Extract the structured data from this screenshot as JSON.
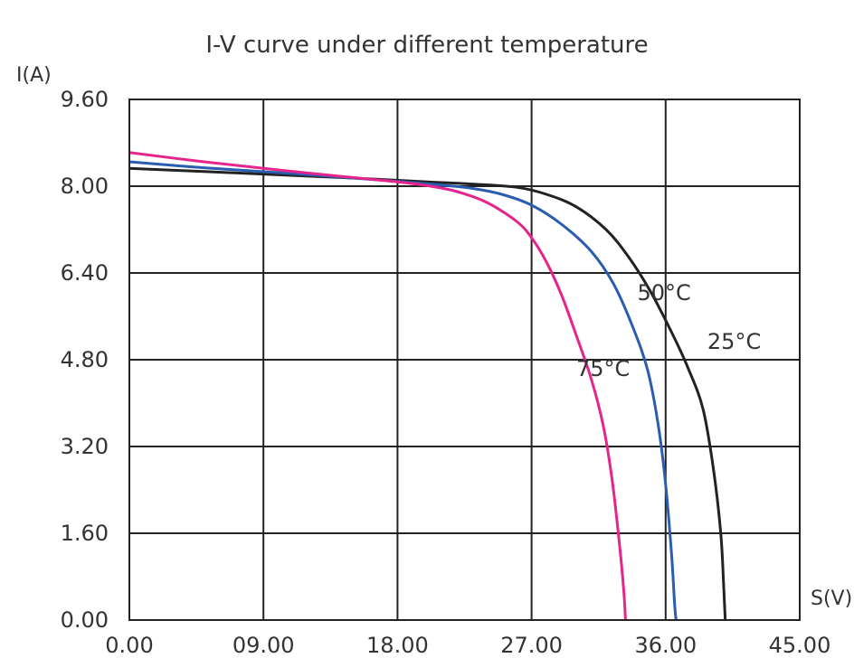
{
  "chart_data": {
    "type": "line",
    "title": "I-V curve under different temperature",
    "ylabel": "I(A)",
    "xlabel": "S(V)",
    "xlim": [
      0,
      45
    ],
    "ylim": [
      0,
      9.6
    ],
    "x_ticks": [
      "0.00",
      "09.00",
      "18.00",
      "27.00",
      "36.00",
      "45.00"
    ],
    "y_ticks": [
      "0.00",
      "1.60",
      "3.20",
      "4.80",
      "6.40",
      "8.00",
      "9.60"
    ],
    "grid": true,
    "series": [
      {
        "name": "25°C",
        "color": "#222222",
        "points": [
          [
            0,
            8.33
          ],
          [
            5,
            8.27
          ],
          [
            10,
            8.21
          ],
          [
            15,
            8.15
          ],
          [
            20,
            8.08
          ],
          [
            23,
            8.04
          ],
          [
            26,
            7.98
          ],
          [
            28,
            7.85
          ],
          [
            30,
            7.62
          ],
          [
            32,
            7.2
          ],
          [
            33.5,
            6.7
          ],
          [
            35,
            6.05
          ],
          [
            36.5,
            5.25
          ],
          [
            37.5,
            4.65
          ],
          [
            38.5,
            3.9
          ],
          [
            39.2,
            2.8
          ],
          [
            39.7,
            1.6
          ],
          [
            39.9,
            0.6
          ],
          [
            40.0,
            0
          ]
        ]
      },
      {
        "name": "50°C",
        "color": "#2a5db0",
        "points": [
          [
            0,
            8.45
          ],
          [
            5,
            8.34
          ],
          [
            10,
            8.25
          ],
          [
            15,
            8.15
          ],
          [
            18,
            8.09
          ],
          [
            21,
            8.02
          ],
          [
            23,
            7.96
          ],
          [
            25,
            7.85
          ],
          [
            27,
            7.65
          ],
          [
            29,
            7.3
          ],
          [
            31,
            6.8
          ],
          [
            32.5,
            6.2
          ],
          [
            33.8,
            5.4
          ],
          [
            34.8,
            4.6
          ],
          [
            35.5,
            3.6
          ],
          [
            36.0,
            2.5
          ],
          [
            36.4,
            1.2
          ],
          [
            36.6,
            0.3
          ],
          [
            36.7,
            0
          ]
        ]
      },
      {
        "name": "75°C",
        "color": "#e6248c",
        "points": [
          [
            0,
            8.62
          ],
          [
            5,
            8.45
          ],
          [
            10,
            8.3
          ],
          [
            15,
            8.16
          ],
          [
            18,
            8.08
          ],
          [
            20,
            8.01
          ],
          [
            22,
            7.9
          ],
          [
            24,
            7.7
          ],
          [
            26,
            7.35
          ],
          [
            27,
            7.05
          ],
          [
            28,
            6.6
          ],
          [
            29,
            6.0
          ],
          [
            30,
            5.25
          ],
          [
            31,
            4.45
          ],
          [
            31.8,
            3.6
          ],
          [
            32.4,
            2.6
          ],
          [
            32.9,
            1.4
          ],
          [
            33.2,
            0.5
          ],
          [
            33.3,
            0
          ]
        ]
      }
    ],
    "annotations": [
      {
        "text": "25°C",
        "series": "25°C",
        "x": 38.8,
        "y": 5.0
      },
      {
        "text": "50°C",
        "series": "50°C",
        "x": 34.1,
        "y": 5.9
      },
      {
        "text": "75°C",
        "series": "75°C",
        "x": 30.0,
        "y": 4.5
      }
    ]
  }
}
